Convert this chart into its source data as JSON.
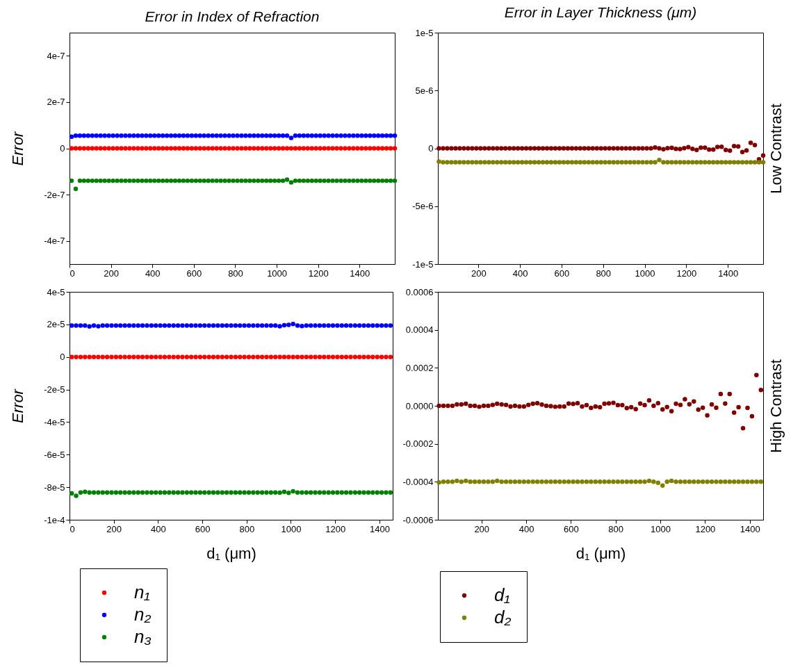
{
  "chart_data": [
    {
      "type": "scatter",
      "title": "Error in Index of Refraction",
      "ylabel": "Error",
      "marker": "circle",
      "xlim": [
        0,
        1570
      ],
      "xticks": [
        0,
        200,
        400,
        600,
        800,
        1000,
        1200,
        1400
      ],
      "ylim": [
        -5e-07,
        5e-07
      ],
      "yticks": [
        {
          "value": -4e-07,
          "label": "-4e-7"
        },
        {
          "value": -2e-07,
          "label": "-2e-7"
        },
        0,
        {
          "value": 2e-07,
          "label": "2e-7"
        },
        {
          "value": 4e-07,
          "label": "4e-7"
        }
      ],
      "x": [
        10,
        30,
        50,
        70,
        90,
        110,
        130,
        150,
        170,
        190,
        210,
        230,
        250,
        270,
        290,
        310,
        330,
        350,
        370,
        390,
        410,
        430,
        450,
        470,
        490,
        510,
        530,
        550,
        570,
        590,
        610,
        630,
        650,
        670,
        690,
        710,
        730,
        750,
        770,
        790,
        810,
        830,
        850,
        870,
        890,
        910,
        930,
        950,
        970,
        990,
        1010,
        1030,
        1050,
        1070,
        1090,
        1110,
        1130,
        1150,
        1170,
        1190,
        1210,
        1230,
        1250,
        1270,
        1290,
        1310,
        1330,
        1350,
        1370,
        1390,
        1410,
        1430,
        1450,
        1470,
        1490,
        1510,
        1530,
        1550,
        1570
      ],
      "series": [
        {
          "color": "#ff0000",
          "values": [
            0,
            0,
            0,
            0,
            0,
            0,
            0,
            0,
            0,
            0,
            0,
            0,
            0,
            0,
            0,
            0,
            0,
            0,
            0,
            0,
            0,
            0,
            0,
            0,
            0,
            0,
            0,
            0,
            0,
            0,
            0,
            0,
            0,
            0,
            0,
            0,
            0,
            0,
            0,
            0,
            0,
            0,
            0,
            0,
            0,
            0,
            0,
            0,
            0,
            0,
            0,
            0,
            0,
            0,
            0,
            0,
            0,
            0,
            0,
            0,
            0,
            0,
            0,
            0,
            0,
            0,
            0,
            0,
            0,
            0,
            0,
            0,
            0,
            0,
            0,
            0,
            0,
            0,
            0
          ]
        },
        {
          "color": "#0000ff",
          "values": [
            5e-08,
            5.5e-08,
            5.5e-08,
            5.5e-08,
            5.5e-08,
            5.5e-08,
            5.5e-08,
            5.5e-08,
            5.5e-08,
            5.5e-08,
            5.5e-08,
            5.5e-08,
            5.5e-08,
            5.5e-08,
            5.5e-08,
            5.5e-08,
            5.5e-08,
            5.5e-08,
            5.5e-08,
            5.5e-08,
            5.5e-08,
            5.5e-08,
            5.5e-08,
            5.5e-08,
            5.5e-08,
            5.5e-08,
            5.5e-08,
            5.5e-08,
            5.5e-08,
            5.5e-08,
            5.5e-08,
            5.5e-08,
            5.5e-08,
            5.5e-08,
            5.5e-08,
            5.5e-08,
            5.5e-08,
            5.5e-08,
            5.5e-08,
            5.5e-08,
            5.5e-08,
            5.5e-08,
            5.5e-08,
            5.5e-08,
            5.5e-08,
            5.5e-08,
            5.5e-08,
            5.5e-08,
            5.5e-08,
            5.5e-08,
            5.5e-08,
            5.5e-08,
            5.5e-08,
            4.5e-08,
            5.5e-08,
            5.5e-08,
            5.5e-08,
            5.5e-08,
            5.5e-08,
            5.5e-08,
            5.5e-08,
            5.5e-08,
            5.5e-08,
            5.5e-08,
            5.5e-08,
            5.5e-08,
            5.5e-08,
            5.5e-08,
            5.5e-08,
            5.5e-08,
            5.5e-08,
            5.5e-08,
            5.5e-08,
            5.5e-08,
            5.5e-08,
            5.5e-08,
            5.5e-08,
            5.5e-08,
            5.5e-08
          ]
        },
        {
          "color": "#008000",
          "values": [
            -1.4e-07,
            -1.75e-07,
            -1.4e-07,
            -1.4e-07,
            -1.4e-07,
            -1.4e-07,
            -1.4e-07,
            -1.4e-07,
            -1.4e-07,
            -1.4e-07,
            -1.4e-07,
            -1.4e-07,
            -1.4e-07,
            -1.4e-07,
            -1.4e-07,
            -1.4e-07,
            -1.4e-07,
            -1.4e-07,
            -1.4e-07,
            -1.4e-07,
            -1.4e-07,
            -1.4e-07,
            -1.4e-07,
            -1.4e-07,
            -1.4e-07,
            -1.4e-07,
            -1.4e-07,
            -1.4e-07,
            -1.4e-07,
            -1.4e-07,
            -1.4e-07,
            -1.4e-07,
            -1.4e-07,
            -1.4e-07,
            -1.4e-07,
            -1.4e-07,
            -1.4e-07,
            -1.4e-07,
            -1.4e-07,
            -1.4e-07,
            -1.4e-07,
            -1.4e-07,
            -1.4e-07,
            -1.4e-07,
            -1.4e-07,
            -1.4e-07,
            -1.4e-07,
            -1.4e-07,
            -1.4e-07,
            -1.4e-07,
            -1.4e-07,
            -1.4e-07,
            -1.35e-07,
            -1.47e-07,
            -1.4e-07,
            -1.4e-07,
            -1.4e-07,
            -1.4e-07,
            -1.4e-07,
            -1.4e-07,
            -1.4e-07,
            -1.4e-07,
            -1.4e-07,
            -1.4e-07,
            -1.4e-07,
            -1.4e-07,
            -1.4e-07,
            -1.4e-07,
            -1.4e-07,
            -1.4e-07,
            -1.4e-07,
            -1.4e-07,
            -1.4e-07,
            -1.4e-07,
            -1.4e-07,
            -1.4e-07,
            -1.4e-07,
            -1.4e-07,
            -1.4e-07
          ]
        }
      ]
    },
    {
      "type": "scatter",
      "title": "Error in Layer Thickness (μm)",
      "y2label": "Low Contrast",
      "marker": "circle",
      "xlim": [
        5,
        1570
      ],
      "xticks": [
        200,
        400,
        600,
        800,
        1000,
        1200,
        1400
      ],
      "ylim": [
        -1e-05,
        1e-05
      ],
      "yticks": [
        {
          "value": -1e-05,
          "label": "-1e-5"
        },
        {
          "value": -5e-06,
          "label": "-5e-6"
        },
        0,
        {
          "value": 5e-06,
          "label": "5e-6"
        },
        {
          "value": 1e-05,
          "label": "1e-5"
        }
      ],
      "x": [
        10,
        30,
        50,
        70,
        90,
        110,
        130,
        150,
        170,
        190,
        210,
        230,
        250,
        270,
        290,
        310,
        330,
        350,
        370,
        390,
        410,
        430,
        450,
        470,
        490,
        510,
        530,
        550,
        570,
        590,
        610,
        630,
        650,
        670,
        690,
        710,
        730,
        750,
        770,
        790,
        810,
        830,
        850,
        870,
        890,
        910,
        930,
        950,
        970,
        990,
        1010,
        1030,
        1050,
        1070,
        1090,
        1110,
        1130,
        1150,
        1170,
        1190,
        1210,
        1230,
        1250,
        1270,
        1290,
        1310,
        1330,
        1350,
        1370,
        1390,
        1410,
        1430,
        1450,
        1470,
        1490,
        1510,
        1530,
        1550,
        1570
      ],
      "series": [
        {
          "color": "#800000",
          "values": [
            0,
            0,
            0,
            0,
            0,
            0,
            0,
            0,
            0,
            0,
            0,
            0,
            0,
            0,
            0,
            0,
            0,
            0,
            0,
            0,
            0,
            0,
            0,
            0,
            0,
            0,
            0,
            0,
            0,
            0,
            0,
            0,
            0,
            0,
            0,
            0,
            0,
            0,
            0,
            0,
            0,
            0,
            0,
            0,
            0,
            0,
            0,
            0,
            0,
            0,
            0,
            0,
            8e-08,
            0,
            -8e-08,
            2e-08,
            4e-08,
            -4e-08,
            -6e-08,
            2e-08,
            1e-07,
            -4e-08,
            -1.4e-07,
            6e-08,
            6e-08,
            -1e-07,
            -1e-07,
            1.2e-07,
            1.4e-07,
            -1.4e-07,
            -2e-07,
            2e-07,
            1.6e-07,
            -3.2e-07,
            -1.8e-07,
            4.8e-07,
            2.8e-07,
            -9.4e-07,
            -6.2e-07
          ]
        },
        {
          "color": "#808000",
          "values": [
            -1.14e-06,
            -1.2e-06,
            -1.2e-06,
            -1.2e-06,
            -1.2e-06,
            -1.2e-06,
            -1.2e-06,
            -1.2e-06,
            -1.2e-06,
            -1.2e-06,
            -1.2e-06,
            -1.2e-06,
            -1.2e-06,
            -1.2e-06,
            -1.2e-06,
            -1.2e-06,
            -1.2e-06,
            -1.2e-06,
            -1.2e-06,
            -1.2e-06,
            -1.2e-06,
            -1.2e-06,
            -1.2e-06,
            -1.2e-06,
            -1.2e-06,
            -1.2e-06,
            -1.2e-06,
            -1.2e-06,
            -1.2e-06,
            -1.2e-06,
            -1.2e-06,
            -1.2e-06,
            -1.2e-06,
            -1.2e-06,
            -1.2e-06,
            -1.2e-06,
            -1.2e-06,
            -1.2e-06,
            -1.2e-06,
            -1.2e-06,
            -1.2e-06,
            -1.2e-06,
            -1.2e-06,
            -1.2e-06,
            -1.2e-06,
            -1.2e-06,
            -1.2e-06,
            -1.2e-06,
            -1.2e-06,
            -1.2e-06,
            -1.2e-06,
            -1.2e-06,
            -1.2e-06,
            -1e-06,
            -1.2e-06,
            -1.2e-06,
            -1.2e-06,
            -1.2e-06,
            -1.2e-06,
            -1.2e-06,
            -1.2e-06,
            -1.2e-06,
            -1.2e-06,
            -1.2e-06,
            -1.2e-06,
            -1.2e-06,
            -1.2e-06,
            -1.2e-06,
            -1.2e-06,
            -1.2e-06,
            -1.2e-06,
            -1.2e-06,
            -1.2e-06,
            -1.2e-06,
            -1.2e-06,
            -1.2e-06,
            -1.2e-06,
            -1.2e-06,
            -1.2e-06
          ]
        }
      ]
    },
    {
      "type": "scatter",
      "ylabel": "Error",
      "xlabel": "d₁ (μm)",
      "legend": "bottom left",
      "marker": "circle",
      "xlim": [
        0,
        1460
      ],
      "xticks": [
        0,
        200,
        400,
        600,
        800,
        1000,
        1200,
        1400
      ],
      "ylim": [
        -0.0001,
        4e-05
      ],
      "yticks": [
        {
          "value": -0.0001,
          "label": "-1e-4"
        },
        {
          "value": -8e-05,
          "label": "-8e-5"
        },
        {
          "value": -6e-05,
          "label": "-6e-5"
        },
        {
          "value": -4e-05,
          "label": "-4e-5"
        },
        {
          "value": -2e-05,
          "label": "-2e-5"
        },
        0,
        {
          "value": 2e-05,
          "label": "2e-5"
        },
        {
          "value": 4e-05,
          "label": "4e-5"
        }
      ],
      "x": [
        10,
        30,
        50,
        70,
        90,
        110,
        130,
        150,
        170,
        190,
        210,
        230,
        250,
        270,
        290,
        310,
        330,
        350,
        370,
        390,
        410,
        430,
        450,
        470,
        490,
        510,
        530,
        550,
        570,
        590,
        610,
        630,
        650,
        670,
        690,
        710,
        730,
        750,
        770,
        790,
        810,
        830,
        850,
        870,
        890,
        910,
        930,
        950,
        970,
        990,
        1010,
        1030,
        1050,
        1070,
        1090,
        1110,
        1130,
        1150,
        1170,
        1190,
        1210,
        1230,
        1250,
        1270,
        1290,
        1310,
        1330,
        1350,
        1370,
        1390,
        1410,
        1430,
        1450
      ],
      "series": [
        {
          "name": "n₁",
          "color": "#ff0000",
          "values": [
            0,
            0,
            0,
            0,
            0,
            0,
            0,
            0,
            0,
            0,
            0,
            0,
            0,
            0,
            0,
            0,
            0,
            0,
            0,
            0,
            0,
            0,
            0,
            0,
            0,
            0,
            0,
            0,
            0,
            0,
            0,
            0,
            0,
            0,
            0,
            0,
            0,
            0,
            0,
            0,
            0,
            0,
            0,
            0,
            0,
            0,
            0,
            0,
            0,
            0,
            0,
            0,
            0,
            0,
            0,
            0,
            0,
            0,
            0,
            0,
            0,
            0,
            0,
            0,
            0,
            0,
            0,
            0,
            0,
            0,
            0,
            0,
            0
          ]
        },
        {
          "name": "n₂",
          "color": "#0000ff",
          "values": [
            1.93e-05,
            1.93e-05,
            1.93e-05,
            1.93e-05,
            1.88e-05,
            1.93e-05,
            1.89e-05,
            1.93e-05,
            1.93e-05,
            1.93e-05,
            1.93e-05,
            1.93e-05,
            1.93e-05,
            1.93e-05,
            1.93e-05,
            1.93e-05,
            1.93e-05,
            1.93e-05,
            1.93e-05,
            1.93e-05,
            1.93e-05,
            1.93e-05,
            1.93e-05,
            1.93e-05,
            1.93e-05,
            1.93e-05,
            1.93e-05,
            1.93e-05,
            1.93e-05,
            1.93e-05,
            1.93e-05,
            1.93e-05,
            1.93e-05,
            1.93e-05,
            1.93e-05,
            1.93e-05,
            1.93e-05,
            1.93e-05,
            1.93e-05,
            1.93e-05,
            1.93e-05,
            1.93e-05,
            1.93e-05,
            1.93e-05,
            1.93e-05,
            1.93e-05,
            1.93e-05,
            1.89e-05,
            1.95e-05,
            1.97e-05,
            2.03e-05,
            1.93e-05,
            1.9e-05,
            1.93e-05,
            1.93e-05,
            1.93e-05,
            1.93e-05,
            1.93e-05,
            1.93e-05,
            1.93e-05,
            1.93e-05,
            1.93e-05,
            1.93e-05,
            1.93e-05,
            1.93e-05,
            1.93e-05,
            1.93e-05,
            1.93e-05,
            1.93e-05,
            1.93e-05,
            1.93e-05,
            1.93e-05,
            1.93e-05
          ]
        },
        {
          "name": "n₃",
          "color": "#008000",
          "values": [
            -8.38e-05,
            -8.53e-05,
            -8.32e-05,
            -8.28e-05,
            -8.32e-05,
            -8.32e-05,
            -8.32e-05,
            -8.32e-05,
            -8.32e-05,
            -8.32e-05,
            -8.32e-05,
            -8.32e-05,
            -8.32e-05,
            -8.32e-05,
            -8.32e-05,
            -8.32e-05,
            -8.32e-05,
            -8.32e-05,
            -8.32e-05,
            -8.32e-05,
            -8.32e-05,
            -8.32e-05,
            -8.32e-05,
            -8.32e-05,
            -8.32e-05,
            -8.32e-05,
            -8.32e-05,
            -8.32e-05,
            -8.32e-05,
            -8.32e-05,
            -8.32e-05,
            -8.32e-05,
            -8.32e-05,
            -8.32e-05,
            -8.32e-05,
            -8.32e-05,
            -8.32e-05,
            -8.32e-05,
            -8.32e-05,
            -8.32e-05,
            -8.32e-05,
            -8.32e-05,
            -8.32e-05,
            -8.32e-05,
            -8.32e-05,
            -8.32e-05,
            -8.32e-05,
            -8.34e-05,
            -8.28e-05,
            -8.35e-05,
            -8.25e-05,
            -8.32e-05,
            -8.32e-05,
            -8.32e-05,
            -8.32e-05,
            -8.32e-05,
            -8.32e-05,
            -8.32e-05,
            -8.32e-05,
            -8.32e-05,
            -8.32e-05,
            -8.32e-05,
            -8.32e-05,
            -8.32e-05,
            -8.32e-05,
            -8.32e-05,
            -8.32e-05,
            -8.32e-05,
            -8.32e-05,
            -8.32e-05,
            -8.32e-05,
            -8.32e-05,
            -8.32e-05
          ]
        }
      ]
    },
    {
      "type": "scatter",
      "xlabel": "d₁ (μm)",
      "y2label": "High Contrast",
      "legend": "bottom left",
      "marker": "circle",
      "xlim": [
        5,
        1460
      ],
      "xticks": [
        200,
        400,
        600,
        800,
        1000,
        1200,
        1400
      ],
      "ylim": [
        -0.0006,
        0.0006
      ],
      "yticks": [
        -0.0006,
        -0.0004,
        -0.0002,
        {
          "value": 0,
          "label": "0.0000"
        },
        0.0002,
        0.0004,
        0.0006
      ],
      "x": [
        10,
        30,
        50,
        70,
        90,
        110,
        130,
        150,
        170,
        190,
        210,
        230,
        250,
        270,
        290,
        310,
        330,
        350,
        370,
        390,
        410,
        430,
        450,
        470,
        490,
        510,
        530,
        550,
        570,
        590,
        610,
        630,
        650,
        670,
        690,
        710,
        730,
        750,
        770,
        790,
        810,
        830,
        850,
        870,
        890,
        910,
        930,
        950,
        970,
        990,
        1010,
        1030,
        1050,
        1070,
        1090,
        1110,
        1130,
        1150,
        1170,
        1190,
        1210,
        1230,
        1250,
        1270,
        1290,
        1310,
        1330,
        1350,
        1370,
        1390,
        1410,
        1430,
        1450
      ],
      "series": [
        {
          "name": "d₁",
          "color": "#800000",
          "values": [
            0,
            0,
            0,
            0,
            7e-06,
            7e-06,
            1.1e-05,
            0,
            0,
            -5e-06,
            0,
            0,
            5e-06,
            1.1e-05,
            7e-06,
            5e-06,
            -4e-06,
            0,
            -4e-06,
            -4e-06,
            5e-06,
            1.1e-05,
            1.4e-05,
            6e-06,
            0,
            -2e-06,
            -5e-06,
            -4e-06,
            -4e-06,
            1.2e-05,
            1e-05,
            1.4e-05,
            -4e-06,
            4e-06,
            -1.1e-05,
            -4e-06,
            -7e-06,
            1.1e-05,
            1.3e-05,
            1.6e-05,
            4e-06,
            4e-06,
            -1.2e-05,
            -7e-06,
            -1.7e-05,
            1.2e-05,
            4e-06,
            2.8e-05,
            0,
            1.4e-05,
            -1.9e-05,
            -6e-06,
            -2.8e-05,
            1.1e-05,
            5e-06,
            3.5e-05,
            8e-06,
            2.3e-05,
            -2e-05,
            -1e-05,
            -5e-05,
            7e-06,
            -1e-05,
            6.2e-05,
            1.2e-05,
            6.2e-05,
            -3.6e-05,
            -7e-06,
            -0.000118,
            -1.1e-05,
            -5.5e-05,
            0.000162,
            8.3e-05
          ]
        },
        {
          "name": "d₂",
          "color": "#808000",
          "values": [
            -0.000403,
            -0.0004,
            -0.0004,
            -0.0004,
            -0.000395,
            -0.0004,
            -0.000395,
            -0.0004,
            -0.0004,
            -0.0004,
            -0.0004,
            -0.0004,
            -0.0004,
            -0.000395,
            -0.0004,
            -0.0004,
            -0.0004,
            -0.0004,
            -0.0004,
            -0.0004,
            -0.0004,
            -0.0004,
            -0.0004,
            -0.0004,
            -0.0004,
            -0.0004,
            -0.0004,
            -0.0004,
            -0.0004,
            -0.0004,
            -0.0004,
            -0.0004,
            -0.0004,
            -0.0004,
            -0.0004,
            -0.0004,
            -0.0004,
            -0.0004,
            -0.0004,
            -0.0004,
            -0.0004,
            -0.0004,
            -0.0004,
            -0.0004,
            -0.0004,
            -0.0004,
            -0.0004,
            -0.000395,
            -0.0004,
            -0.000405,
            -0.00042,
            -0.0004,
            -0.000395,
            -0.0004,
            -0.0004,
            -0.0004,
            -0.0004,
            -0.0004,
            -0.0004,
            -0.0004,
            -0.0004,
            -0.0004,
            -0.0004,
            -0.0004,
            -0.0004,
            -0.0004,
            -0.0004,
            -0.0004,
            -0.0004,
            -0.0004,
            -0.0004,
            -0.0004,
            -0.0004
          ]
        }
      ]
    }
  ]
}
